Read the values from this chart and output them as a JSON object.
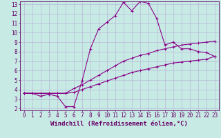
{
  "xlabel": "Windchill (Refroidissement éolien,°C)",
  "bg_color": "#c8eae5",
  "grid_color": "#b8b8d8",
  "line_color": "#880088",
  "xlim": [
    -0.5,
    23.5
  ],
  "ylim": [
    1.8,
    13.3
  ],
  "xticks": [
    0,
    1,
    2,
    3,
    4,
    5,
    6,
    7,
    8,
    9,
    10,
    11,
    12,
    13,
    14,
    15,
    16,
    17,
    18,
    19,
    20,
    21,
    22,
    23
  ],
  "yticks": [
    2,
    3,
    4,
    5,
    6,
    7,
    8,
    9,
    10,
    11,
    12,
    13
  ],
  "line1_x": [
    0,
    1,
    2,
    3,
    4,
    5,
    6,
    7,
    8,
    9,
    10,
    11,
    12,
    13,
    14,
    15,
    16,
    17,
    18,
    19,
    20,
    21,
    22,
    23
  ],
  "line1_y": [
    3.6,
    3.6,
    3.3,
    3.5,
    3.3,
    2.2,
    2.2,
    4.9,
    8.3,
    10.4,
    11.1,
    11.8,
    13.2,
    12.3,
    13.3,
    13.1,
    11.5,
    8.7,
    9.0,
    8.3,
    8.3,
    8.0,
    7.9,
    7.5
  ],
  "line2_x": [
    0,
    1,
    2,
    3,
    4,
    5,
    6,
    7,
    8,
    9,
    10,
    11,
    12,
    13,
    14,
    15,
    16,
    17,
    18,
    19,
    20,
    21,
    22,
    23
  ],
  "line2_y": [
    3.6,
    3.6,
    3.6,
    3.6,
    3.6,
    3.6,
    4.1,
    4.5,
    5.0,
    5.5,
    6.0,
    6.5,
    7.0,
    7.3,
    7.6,
    7.8,
    8.1,
    8.3,
    8.5,
    8.7,
    8.8,
    8.9,
    9.0,
    9.1
  ],
  "line3_x": [
    0,
    1,
    2,
    3,
    4,
    5,
    6,
    7,
    8,
    9,
    10,
    11,
    12,
    13,
    14,
    15,
    16,
    17,
    18,
    19,
    20,
    21,
    22,
    23
  ],
  "line3_y": [
    3.6,
    3.6,
    3.6,
    3.6,
    3.6,
    3.6,
    3.7,
    4.0,
    4.3,
    4.6,
    4.9,
    5.2,
    5.5,
    5.8,
    6.0,
    6.2,
    6.4,
    6.6,
    6.8,
    6.9,
    7.0,
    7.1,
    7.2,
    7.5
  ],
  "font_color": "#660066",
  "tick_fontsize": 5.5,
  "label_fontsize": 6.5
}
